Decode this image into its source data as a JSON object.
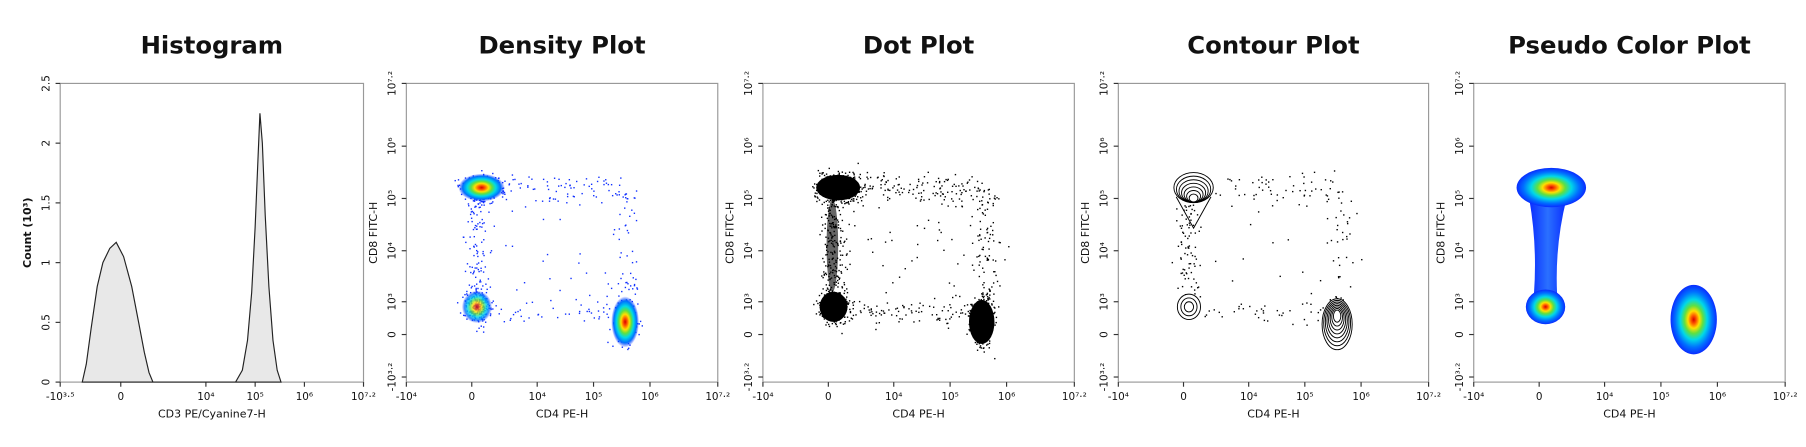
{
  "chart_data": [
    {
      "type": "line",
      "title": "Histogram",
      "xlabel": "CD3 PE/Cyanine7-H",
      "ylabel": "Count (10³)",
      "x": [
        -1100,
        -900,
        -700,
        -500,
        -350,
        -200,
        -80,
        50,
        200,
        350,
        500,
        650,
        800,
        40000,
        55000,
        70000,
        85000,
        100000,
        115000,
        125000,
        140000,
        160000,
        190000,
        230000,
        280000,
        335000
      ],
      "values": [
        0,
        0.15,
        0.45,
        0.8,
        1.0,
        1.12,
        1.17,
        1.05,
        0.8,
        0.5,
        0.25,
        0.08,
        0,
        0,
        0.1,
        0.35,
        0.75,
        1.3,
        1.9,
        2.25,
        2.0,
        1.4,
        0.8,
        0.35,
        0.1,
        0
      ],
      "color": "#e8e8e8",
      "xlim": [
        -3162,
        15848932
      ],
      "xticks": [
        {
          "value": -3162,
          "label": "-10³·⁵"
        },
        0,
        {
          "value": 10000,
          "label": "10⁴"
        },
        {
          "value": 100000,
          "label": "10⁵"
        },
        {
          "value": 1000000,
          "label": "10⁶"
        },
        {
          "value": 15848932,
          "label": "10⁷·²"
        }
      ],
      "ylim": [
        0,
        2.5
      ],
      "yticks": [
        0,
        0.5,
        1,
        1.5,
        2,
        2.5
      ]
    },
    {
      "type": "density",
      "title": "Density Plot",
      "xlabel": "CD4 PE-H",
      "ylabel": "CD8 FITC-H",
      "xlim": [
        -10000,
        15848932
      ],
      "xticks": [
        {
          "value": -10000,
          "label": "-10⁴"
        },
        0,
        {
          "value": 10000,
          "label": "10⁴"
        },
        {
          "value": 100000,
          "label": "10⁵"
        },
        {
          "value": 1000000,
          "label": "10⁶"
        },
        {
          "value": 15848932,
          "label": "10⁷·²"
        }
      ],
      "ylim": [
        -2000,
        15848932
      ],
      "yticks": [
        {
          "value": -1585,
          "label": "-10³·²"
        },
        0,
        {
          "value": 1000,
          "label": "10³"
        },
        {
          "value": 10000,
          "label": "10⁴"
        },
        {
          "value": 100000,
          "label": "10⁵"
        },
        {
          "value": 1000000,
          "label": "10⁶"
        },
        {
          "value": 15848932,
          "label": "10⁷·²"
        }
      ]
    },
    {
      "type": "dot",
      "title": "Dot Plot",
      "xlabel": "CD4 PE-H",
      "ylabel": "CD8 FITC-H",
      "xlim": [
        -10000,
        15848932
      ],
      "xticks": [
        {
          "value": -10000,
          "label": "-10⁴"
        },
        0,
        {
          "value": 10000,
          "label": "10⁴"
        },
        {
          "value": 100000,
          "label": "10⁵"
        },
        {
          "value": 1000000,
          "label": "10⁶"
        },
        {
          "value": 15848932,
          "label": "10⁷·²"
        }
      ],
      "ylim": [
        -2000,
        15848932
      ],
      "yticks": [
        {
          "value": -1585,
          "label": "-10³·²"
        },
        0,
        {
          "value": 1000,
          "label": "10³"
        },
        {
          "value": 10000,
          "label": "10⁴"
        },
        {
          "value": 100000,
          "label": "10⁵"
        },
        {
          "value": 1000000,
          "label": "10⁶"
        },
        {
          "value": 15848932,
          "label": "10⁷·²"
        }
      ]
    },
    {
      "type": "contour",
      "title": "Contour Plot",
      "xlabel": "CD4 PE-H",
      "ylabel": "CD8 FITC-H",
      "xlim": [
        -10000,
        15848932
      ],
      "xticks": [
        {
          "value": -10000,
          "label": "-10⁴"
        },
        0,
        {
          "value": 10000,
          "label": "10⁴"
        },
        {
          "value": 100000,
          "label": "10⁵"
        },
        {
          "value": 1000000,
          "label": "10⁶"
        },
        {
          "value": 15848932,
          "label": "10⁷·²"
        }
      ],
      "ylim": [
        -2000,
        15848932
      ],
      "yticks": [
        {
          "value": -1585,
          "label": "-10³·²"
        },
        0,
        {
          "value": 1000,
          "label": "10³"
        },
        {
          "value": 10000,
          "label": "10⁴"
        },
        {
          "value": 100000,
          "label": "10⁵"
        },
        {
          "value": 1000000,
          "label": "10⁶"
        },
        {
          "value": 15848932,
          "label": "10⁷·²"
        }
      ]
    },
    {
      "type": "pseudocolor",
      "title": "Pseudo Color Plot",
      "xlabel": "CD4 PE-H",
      "ylabel": "CD8 FITC-H",
      "xlim": [
        -10000,
        15848932
      ],
      "xticks": [
        {
          "value": -10000,
          "label": "-10⁴"
        },
        0,
        {
          "value": 10000,
          "label": "10⁴"
        },
        {
          "value": 100000,
          "label": "10⁵"
        },
        {
          "value": 1000000,
          "label": "10⁶"
        },
        {
          "value": 15848932,
          "label": "10⁷·²"
        }
      ],
      "ylim": [
        -2000,
        15848932
      ],
      "yticks": [
        {
          "value": -1585,
          "label": "-10³·²"
        },
        0,
        {
          "value": 1000,
          "label": "10³"
        },
        {
          "value": 10000,
          "label": "10⁴"
        },
        {
          "value": 100000,
          "label": "10⁵"
        },
        {
          "value": 1000000,
          "label": "10⁶"
        },
        {
          "value": 15848932,
          "label": "10⁷·²"
        }
      ]
    }
  ]
}
